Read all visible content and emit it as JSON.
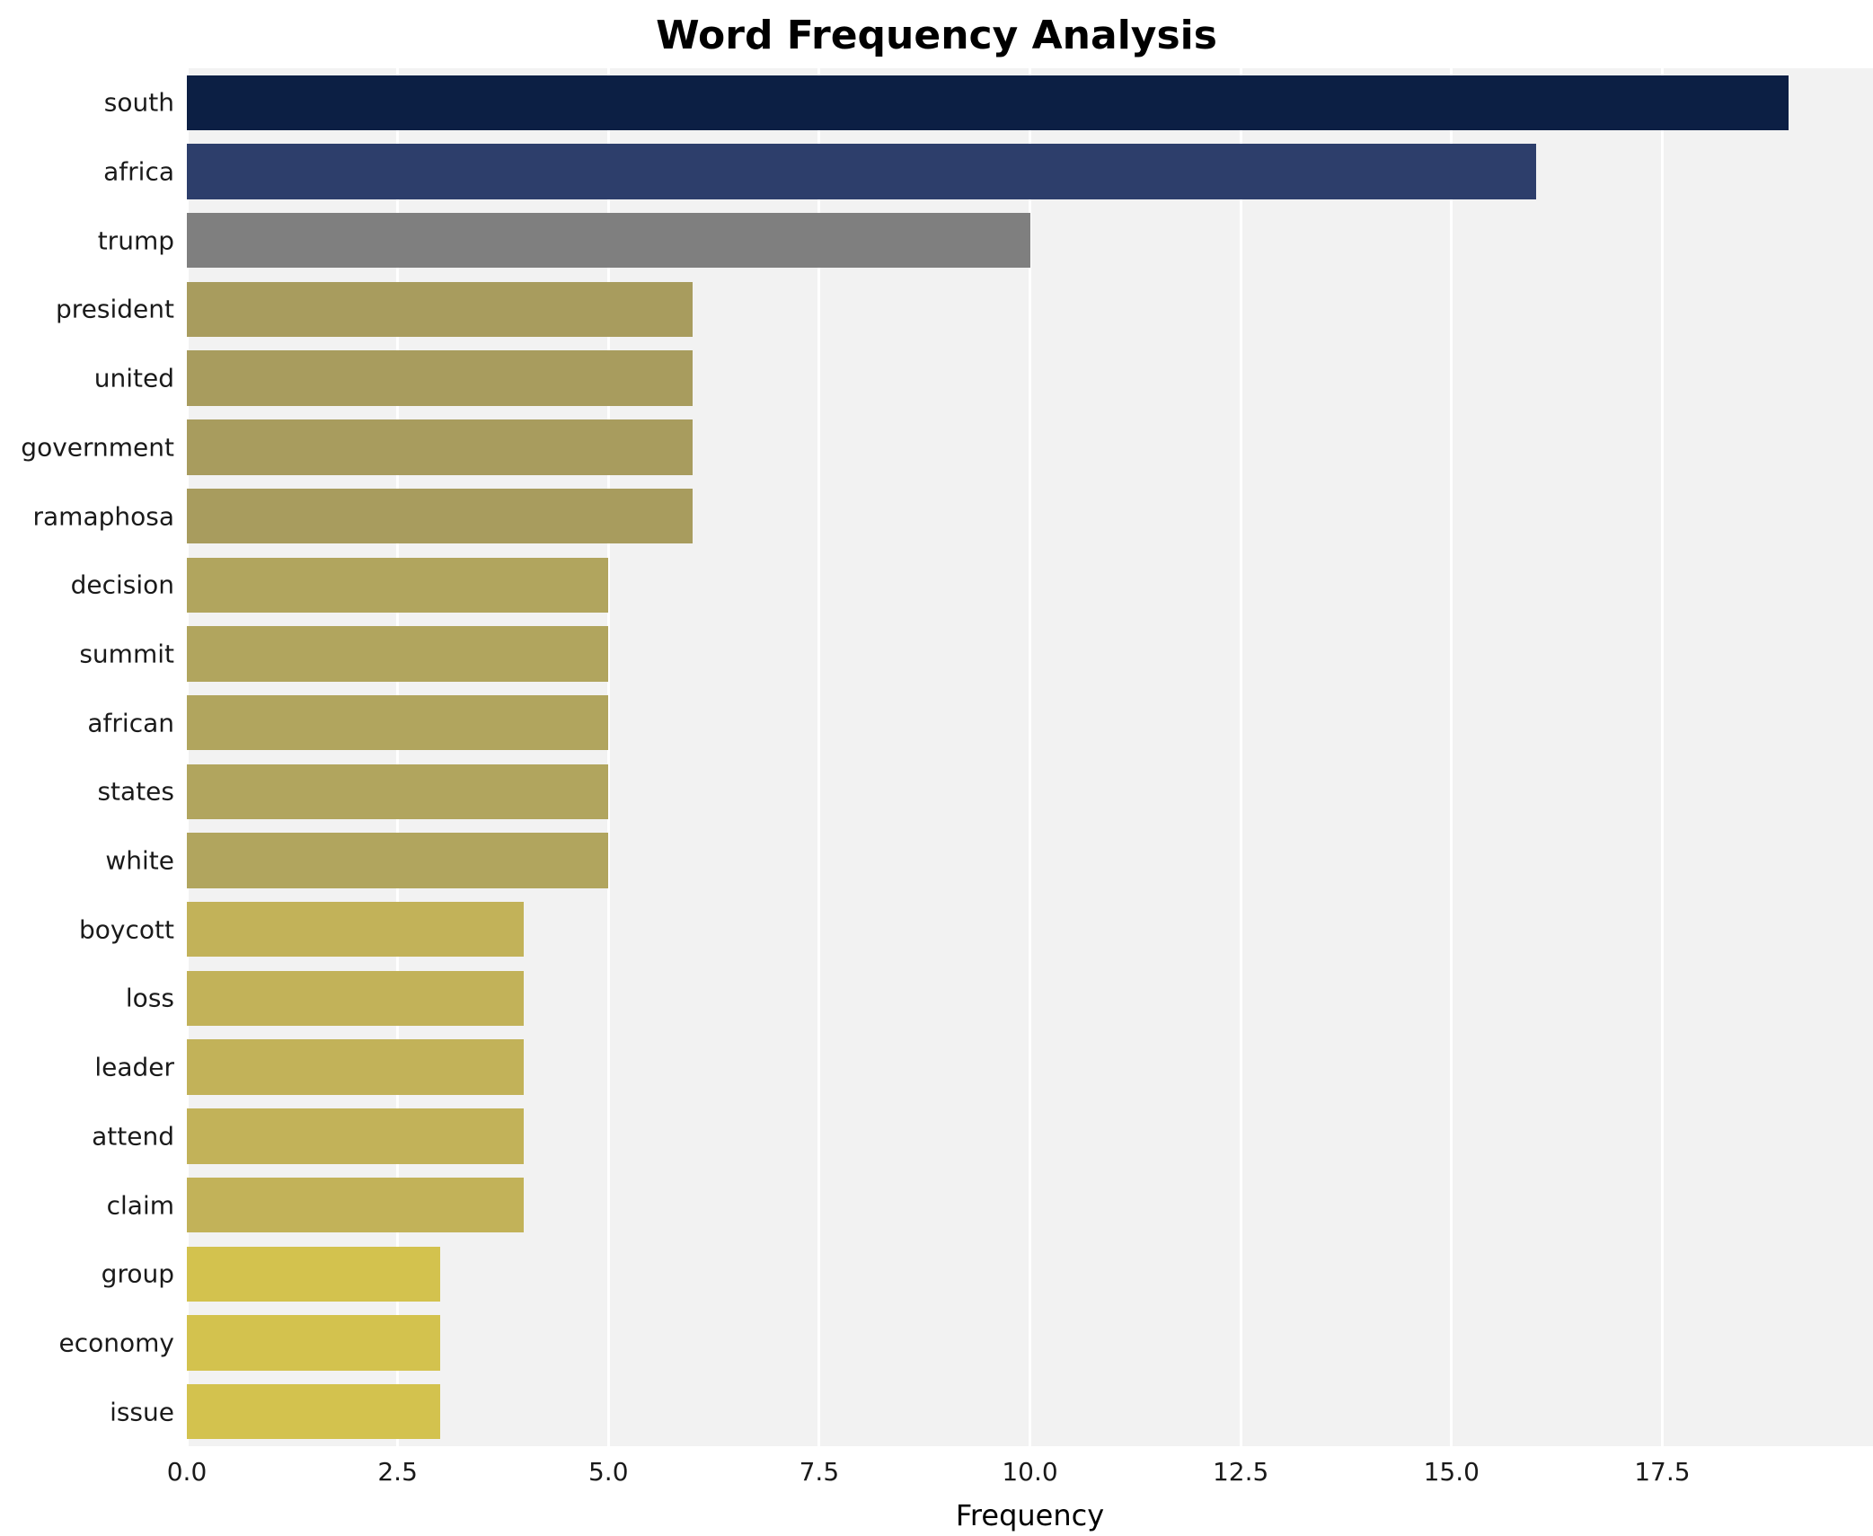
{
  "chart_data": {
    "type": "bar",
    "orientation": "horizontal",
    "title": "Word Frequency Analysis",
    "xlabel": "Frequency",
    "ylabel": "",
    "categories": [
      "south",
      "africa",
      "trump",
      "president",
      "united",
      "government",
      "ramaphosa",
      "decision",
      "summit",
      "african",
      "states",
      "white",
      "boycott",
      "loss",
      "leader",
      "attend",
      "claim",
      "group",
      "economy",
      "issue"
    ],
    "values": [
      19,
      16,
      10,
      6,
      6,
      6,
      6,
      5,
      5,
      5,
      5,
      5,
      4,
      4,
      4,
      4,
      4,
      3,
      3,
      3
    ],
    "bar_colors": [
      "#0c1f44",
      "#2d3e6b",
      "#7f7f7f",
      "#a89c5e",
      "#a89c5e",
      "#a89c5e",
      "#a89c5e",
      "#b1a55e",
      "#b1a55e",
      "#b1a55e",
      "#b1a55e",
      "#b1a55e",
      "#c2b259",
      "#c2b259",
      "#c2b259",
      "#c2b259",
      "#c2b259",
      "#d3c24e",
      "#d3c24e",
      "#d3c24e"
    ],
    "xlim": [
      0,
      20
    ],
    "xticks": [
      0,
      2.5,
      5,
      7.5,
      10,
      12.5,
      15,
      17.5
    ],
    "xtick_labels": [
      "0.0",
      "2.5",
      "5.0",
      "7.5",
      "10.0",
      "12.5",
      "15.0",
      "17.5"
    ],
    "grid": true,
    "legend": "none",
    "plot_background": "#f2f2f2",
    "grid_color": "#ffffff",
    "figure_background": "#ffffff"
  }
}
